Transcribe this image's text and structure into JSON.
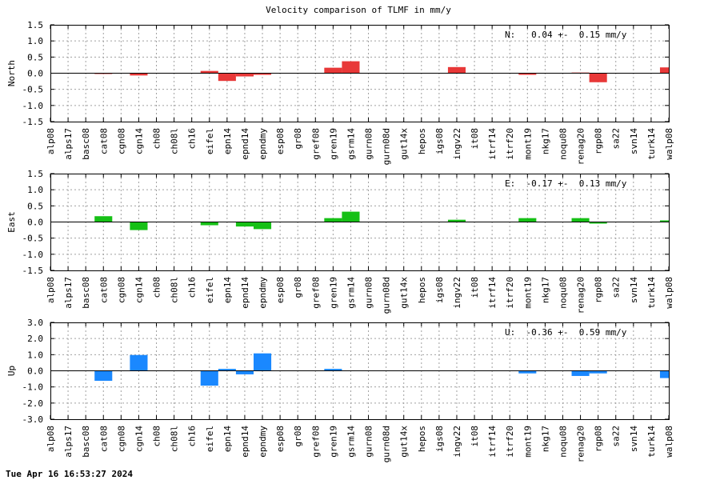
{
  "title": "Velocity comparison of TLMF in mm/y",
  "timestamp": "Tue Apr 16 16:53:27 2024",
  "chart_data": [
    {
      "type": "bar",
      "ylabel": "North",
      "annotation": "N:   0.04 +-  0.15 mm/y",
      "ylim": [
        -1.5,
        1.5
      ],
      "yticks": [
        -1.5,
        -1.0,
        -0.5,
        0.0,
        0.5,
        1.0,
        1.5
      ],
      "yticklabels": [
        "-1.5",
        "-1.0",
        "-0.5",
        "0.0",
        "0.5",
        "1.0",
        "1.5"
      ],
      "color": "#e83838",
      "grid": true,
      "categories": [
        "alp08",
        "alps17",
        "basc08",
        "cat08",
        "cgn08",
        "cgn14",
        "ch08",
        "ch08l",
        "ch16",
        "eifel",
        "epn14",
        "epnd14",
        "epndmy",
        "esp08",
        "gr08",
        "gref08",
        "gren19",
        "gsrm14",
        "gurn08",
        "gurn08d",
        "gut14x",
        "hepos",
        "igs08",
        "ingv22",
        "it08",
        "itrf14",
        "itrf20",
        "mont19",
        "nkg17",
        "noqu08",
        "renag20",
        "rgp08",
        "sa22",
        "svn14",
        "turk14",
        "walp08"
      ],
      "values": [
        null,
        null,
        null,
        -0.02,
        null,
        -0.07,
        null,
        null,
        null,
        0.07,
        -0.24,
        -0.1,
        -0.05,
        null,
        null,
        null,
        0.17,
        0.37,
        null,
        null,
        null,
        null,
        null,
        0.19,
        null,
        null,
        null,
        -0.05,
        null,
        null,
        0.02,
        -0.28,
        null,
        null,
        null,
        0.18
      ]
    },
    {
      "type": "bar",
      "ylabel": "East",
      "annotation": "E:  -0.17 +-  0.13 mm/y",
      "ylim": [
        -1.5,
        1.5
      ],
      "yticks": [
        -1.5,
        -1.0,
        -0.5,
        0.0,
        0.5,
        1.0,
        1.5
      ],
      "yticklabels": [
        "-1.5",
        "-1.0",
        "-0.5",
        "0.0",
        "0.5",
        "1.0",
        "1.5"
      ],
      "color": "#16c016",
      "grid": true,
      "categories": [
        "alp08",
        "alps17",
        "basc08",
        "cat08",
        "cgn08",
        "cgn14",
        "ch08",
        "ch08l",
        "ch16",
        "eifel",
        "epn14",
        "epnd14",
        "epndmy",
        "esp08",
        "gr08",
        "gref08",
        "gren19",
        "gsrm14",
        "gurn08",
        "gurn08d",
        "gut14x",
        "hepos",
        "igs08",
        "ingv22",
        "it08",
        "itrf14",
        "itrf20",
        "mont19",
        "nkg17",
        "noqu08",
        "renag20",
        "rgp08",
        "sa22",
        "svn14",
        "turk14",
        "walp08"
      ],
      "values": [
        null,
        null,
        null,
        0.18,
        null,
        -0.25,
        null,
        null,
        null,
        -0.1,
        null,
        -0.14,
        -0.22,
        null,
        null,
        null,
        0.12,
        0.32,
        null,
        null,
        null,
        null,
        null,
        0.07,
        null,
        null,
        null,
        0.12,
        null,
        null,
        0.12,
        -0.05,
        null,
        null,
        null,
        0.05
      ]
    },
    {
      "type": "bar",
      "ylabel": "Up",
      "annotation": "U:  -0.36 +-  0.59 mm/y",
      "ylim": [
        -3.0,
        3.0
      ],
      "yticks": [
        -3.0,
        -2.0,
        -1.0,
        0.0,
        1.0,
        2.0,
        3.0
      ],
      "yticklabels": [
        "-3.0",
        "-2.0",
        "-1.0",
        "0.0",
        "1.0",
        "2.0",
        "3.0"
      ],
      "color": "#1a88ff",
      "grid": true,
      "categories": [
        "alp08",
        "alps17",
        "basc08",
        "cat08",
        "cgn08",
        "cgn14",
        "ch08",
        "ch08l",
        "ch16",
        "eifel",
        "epn14",
        "epnd14",
        "epndmy",
        "esp08",
        "gr08",
        "gref08",
        "gren19",
        "gsrm14",
        "gurn08",
        "gurn08d",
        "gut14x",
        "hepos",
        "igs08",
        "ingv22",
        "it08",
        "itrf14",
        "itrf20",
        "mont19",
        "nkg17",
        "noqu08",
        "renag20",
        "rgp08",
        "sa22",
        "svn14",
        "turk14",
        "walp08"
      ],
      "values": [
        null,
        null,
        null,
        -0.62,
        null,
        0.98,
        null,
        null,
        null,
        -0.92,
        0.12,
        -0.22,
        1.08,
        null,
        null,
        null,
        0.12,
        null,
        null,
        null,
        null,
        null,
        null,
        null,
        null,
        null,
        null,
        -0.16,
        null,
        null,
        -0.32,
        -0.16,
        null,
        null,
        null,
        -0.45
      ]
    }
  ]
}
